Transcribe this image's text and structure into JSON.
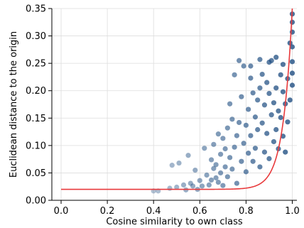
{
  "chart_data": {
    "type": "scatter",
    "xlabel": "Cosine similarity to own class",
    "ylabel": "Euclidean distance to the origin",
    "xlim": [
      -0.04,
      1.02
    ],
    "ylim": [
      0.0,
      0.35
    ],
    "xticks": [
      0.0,
      0.2,
      0.4,
      0.6,
      0.8,
      1.0
    ],
    "xtick_labels": [
      "0.0",
      "0.2",
      "0.4",
      "0.6",
      "0.8",
      "1.0"
    ],
    "yticks": [
      0.0,
      0.05,
      0.1,
      0.15,
      0.2,
      0.25,
      0.3,
      0.35
    ],
    "ytick_labels": [
      "0.00",
      "0.05",
      "0.10",
      "0.15",
      "0.20",
      "0.25",
      "0.30",
      "0.35"
    ],
    "grid": true,
    "colors": {
      "points": "#1f4e82",
      "fit_line": "#e8393b"
    },
    "series": [
      {
        "kind": "points",
        "points": [
          [
            0.4,
            0.017
          ],
          [
            0.42,
            0.017
          ],
          [
            0.47,
            0.022
          ],
          [
            0.48,
            0.064
          ],
          [
            0.5,
            0.024
          ],
          [
            0.51,
            0.068
          ],
          [
            0.53,
            0.028
          ],
          [
            0.54,
            0.019
          ],
          [
            0.55,
            0.082
          ],
          [
            0.56,
            0.031
          ],
          [
            0.57,
            0.026
          ],
          [
            0.58,
            0.055
          ],
          [
            0.59,
            0.02
          ],
          [
            0.6,
            0.036
          ],
          [
            0.61,
            0.026
          ],
          [
            0.62,
            0.095
          ],
          [
            0.63,
            0.046
          ],
          [
            0.64,
            0.028
          ],
          [
            0.65,
            0.074
          ],
          [
            0.65,
            0.037
          ],
          [
            0.66,
            0.058
          ],
          [
            0.66,
            0.102
          ],
          [
            0.67,
            0.041
          ],
          [
            0.67,
            0.065
          ],
          [
            0.68,
            0.121
          ],
          [
            0.68,
            0.033
          ],
          [
            0.69,
            0.084
          ],
          [
            0.69,
            0.05
          ],
          [
            0.7,
            0.113
          ],
          [
            0.7,
            0.027
          ],
          [
            0.71,
            0.094
          ],
          [
            0.71,
            0.061
          ],
          [
            0.72,
            0.132
          ],
          [
            0.72,
            0.043
          ],
          [
            0.73,
            0.176
          ],
          [
            0.73,
            0.078
          ],
          [
            0.74,
            0.148
          ],
          [
            0.74,
            0.057
          ],
          [
            0.75,
            0.229
          ],
          [
            0.75,
            0.097
          ],
          [
            0.76,
            0.118
          ],
          [
            0.76,
            0.031
          ],
          [
            0.77,
            0.255
          ],
          [
            0.77,
            0.142
          ],
          [
            0.78,
            0.071
          ],
          [
            0.78,
            0.189
          ],
          [
            0.79,
            0.245
          ],
          [
            0.79,
            0.104
          ],
          [
            0.8,
            0.137
          ],
          [
            0.8,
            0.052
          ],
          [
            0.81,
            0.166
          ],
          [
            0.81,
            0.086
          ],
          [
            0.82,
            0.223
          ],
          [
            0.82,
            0.118
          ],
          [
            0.83,
            0.196
          ],
          [
            0.83,
            0.071
          ],
          [
            0.84,
            0.152
          ],
          [
            0.84,
            0.095
          ],
          [
            0.85,
            0.183
          ],
          [
            0.85,
            0.129
          ],
          [
            0.86,
            0.205
          ],
          [
            0.86,
            0.061
          ],
          [
            0.87,
            0.23
          ],
          [
            0.87,
            0.141
          ],
          [
            0.88,
            0.174
          ],
          [
            0.88,
            0.088
          ],
          [
            0.89,
            0.215
          ],
          [
            0.89,
            0.122
          ],
          [
            0.9,
            0.195
          ],
          [
            0.9,
            0.076
          ],
          [
            0.91,
            0.255
          ],
          [
            0.91,
            0.156
          ],
          [
            0.92,
            0.178
          ],
          [
            0.92,
            0.107
          ],
          [
            0.93,
            0.205
          ],
          [
            0.93,
            0.129
          ],
          [
            0.94,
            0.163
          ],
          [
            0.94,
            0.094
          ],
          [
            0.95,
            0.229
          ],
          [
            0.95,
            0.151
          ],
          [
            0.96,
            0.198
          ],
          [
            0.96,
            0.117
          ],
          [
            0.97,
            0.176
          ],
          [
            0.97,
            0.088
          ],
          [
            0.98,
            0.222
          ],
          [
            0.98,
            0.143
          ],
          [
            0.99,
            0.287
          ],
          [
            0.99,
            0.183
          ],
          [
            1.0,
            0.34
          ],
          [
            1.0,
            0.325
          ],
          [
            1.0,
            0.307
          ],
          [
            1.0,
            0.28
          ],
          [
            1.0,
            0.253
          ],
          [
            1.0,
            0.232
          ],
          [
            1.0,
            0.21
          ],
          [
            0.86,
            0.257
          ],
          [
            0.9,
            0.252
          ],
          [
            0.93,
            0.261
          ],
          [
            0.96,
            0.248
          ],
          [
            0.82,
            0.245
          ]
        ]
      },
      {
        "kind": "line",
        "formula": "0.02 + 0.33 * exp(25*(x-1))",
        "x_start": 0.0,
        "x_end": 1.0
      }
    ]
  }
}
